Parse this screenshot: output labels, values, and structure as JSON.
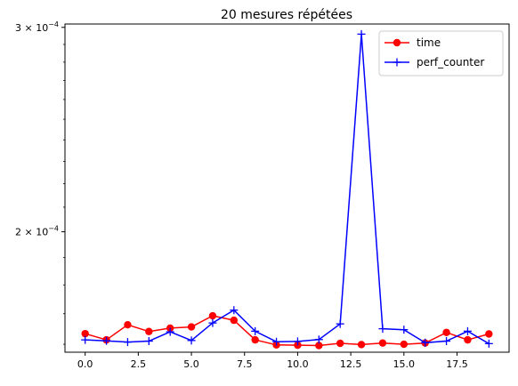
{
  "chart_data": {
    "type": "line",
    "title": "20 mesures répétées",
    "xlabel": "",
    "ylabel": "",
    "yscale": "log",
    "xlim": [
      -0.95,
      19.95
    ],
    "ylim": [
      0.0001575,
      0.000302
    ],
    "x_ticks": [
      0.0,
      2.5,
      5.0,
      7.5,
      10.0,
      12.5,
      15.0,
      17.5
    ],
    "x_tick_labels": [
      "0.0",
      "2.5",
      "5.0",
      "7.5",
      "10.0",
      "12.5",
      "15.0",
      "17.5"
    ],
    "y_ticks": [
      {
        "value": 0.0002,
        "mantissa": "2",
        "exp": "−4"
      },
      {
        "value": 0.0003,
        "mantissa": "3",
        "exp": "−4"
      }
    ],
    "grid": false,
    "legend_position": "top-right",
    "x": [
      0,
      1,
      2,
      3,
      4,
      5,
      6,
      7,
      8,
      9,
      10,
      11,
      12,
      13,
      14,
      15,
      16,
      17,
      18,
      19
    ],
    "series": [
      {
        "name": "time",
        "color": "#ff0000",
        "marker": "circle",
        "values": [
          0.0001634,
          0.0001614,
          0.0001663,
          0.0001641,
          0.0001652,
          0.0001656,
          0.0001693,
          0.0001678,
          0.0001614,
          0.0001598,
          0.0001597,
          0.0001596,
          0.0001603,
          0.0001599,
          0.0001604,
          0.00016,
          0.0001604,
          0.0001638,
          0.0001614,
          0.0001633
        ]
      },
      {
        "name": "perf_counter",
        "color": "#0000ff",
        "marker": "plus",
        "values": [
          0.0001614,
          0.0001611,
          0.0001607,
          0.000161,
          0.000164,
          0.0001612,
          0.0001669,
          0.0001712,
          0.0001642,
          0.0001608,
          0.0001609,
          0.0001615,
          0.0001666,
          0.000296,
          0.000165,
          0.0001647,
          0.0001605,
          0.000161,
          0.0001642,
          0.0001602
        ]
      }
    ]
  }
}
